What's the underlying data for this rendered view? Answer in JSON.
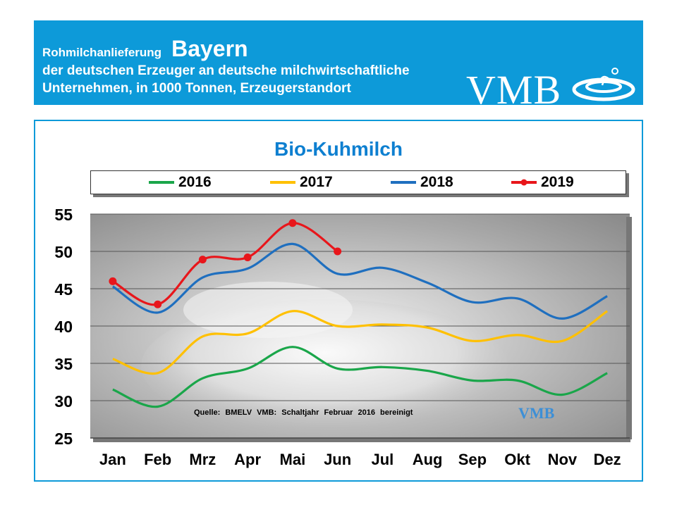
{
  "header": {
    "lead": "Rohmilchanlieferung",
    "region": "Bayern",
    "line2": "der deutschen Erzeuger an deutsche milchwirtschaftliche",
    "line3": "Unternehmen, in 1000 Tonnen, Erzeugerstandort",
    "logo_text": "VMB"
  },
  "colors": {
    "header_bg": "#0d9ad9",
    "title": "#0d7fd0",
    "s2016": "#1aa64a",
    "s2017": "#ffc000",
    "s2018": "#1f6fbf",
    "s2019": "#e8161b"
  },
  "source_note": "Quelle: BMELV VMB: Schaltjahr Februar 2016 bereinigt",
  "small_logo_text": "VMB",
  "chart_data": {
    "type": "line",
    "title": "Bio-Kuhmilch",
    "xlabel": "",
    "ylabel": "",
    "categories": [
      "Jan",
      "Feb",
      "Mrz",
      "Apr",
      "Mai",
      "Jun",
      "Jul",
      "Aug",
      "Sep",
      "Okt",
      "Nov",
      "Dez"
    ],
    "ylim": [
      25,
      55
    ],
    "yticks": [
      25,
      30,
      35,
      40,
      45,
      50,
      55
    ],
    "grid": true,
    "legend": "top",
    "series": [
      {
        "name": "2016",
        "color": "#1aa64a",
        "markers": false,
        "values": [
          31.5,
          29.2,
          33.0,
          34.3,
          37.2,
          34.3,
          34.5,
          34.0,
          32.7,
          32.7,
          30.8,
          33.7
        ]
      },
      {
        "name": "2017",
        "color": "#ffc000",
        "markers": false,
        "values": [
          35.6,
          33.7,
          38.6,
          39.0,
          42.0,
          40.0,
          40.2,
          39.8,
          38.0,
          38.8,
          38.0,
          42.0
        ]
      },
      {
        "name": "2018",
        "color": "#1f6fbf",
        "markers": false,
        "values": [
          45.3,
          41.8,
          46.5,
          47.7,
          51.0,
          47.0,
          47.8,
          45.8,
          43.2,
          43.7,
          41.0,
          44.0
        ]
      },
      {
        "name": "2019",
        "color": "#e8161b",
        "markers": true,
        "values": [
          46.0,
          42.9,
          48.9,
          49.2,
          53.8,
          50.0,
          null,
          null,
          null,
          null,
          null,
          null
        ]
      }
    ]
  }
}
